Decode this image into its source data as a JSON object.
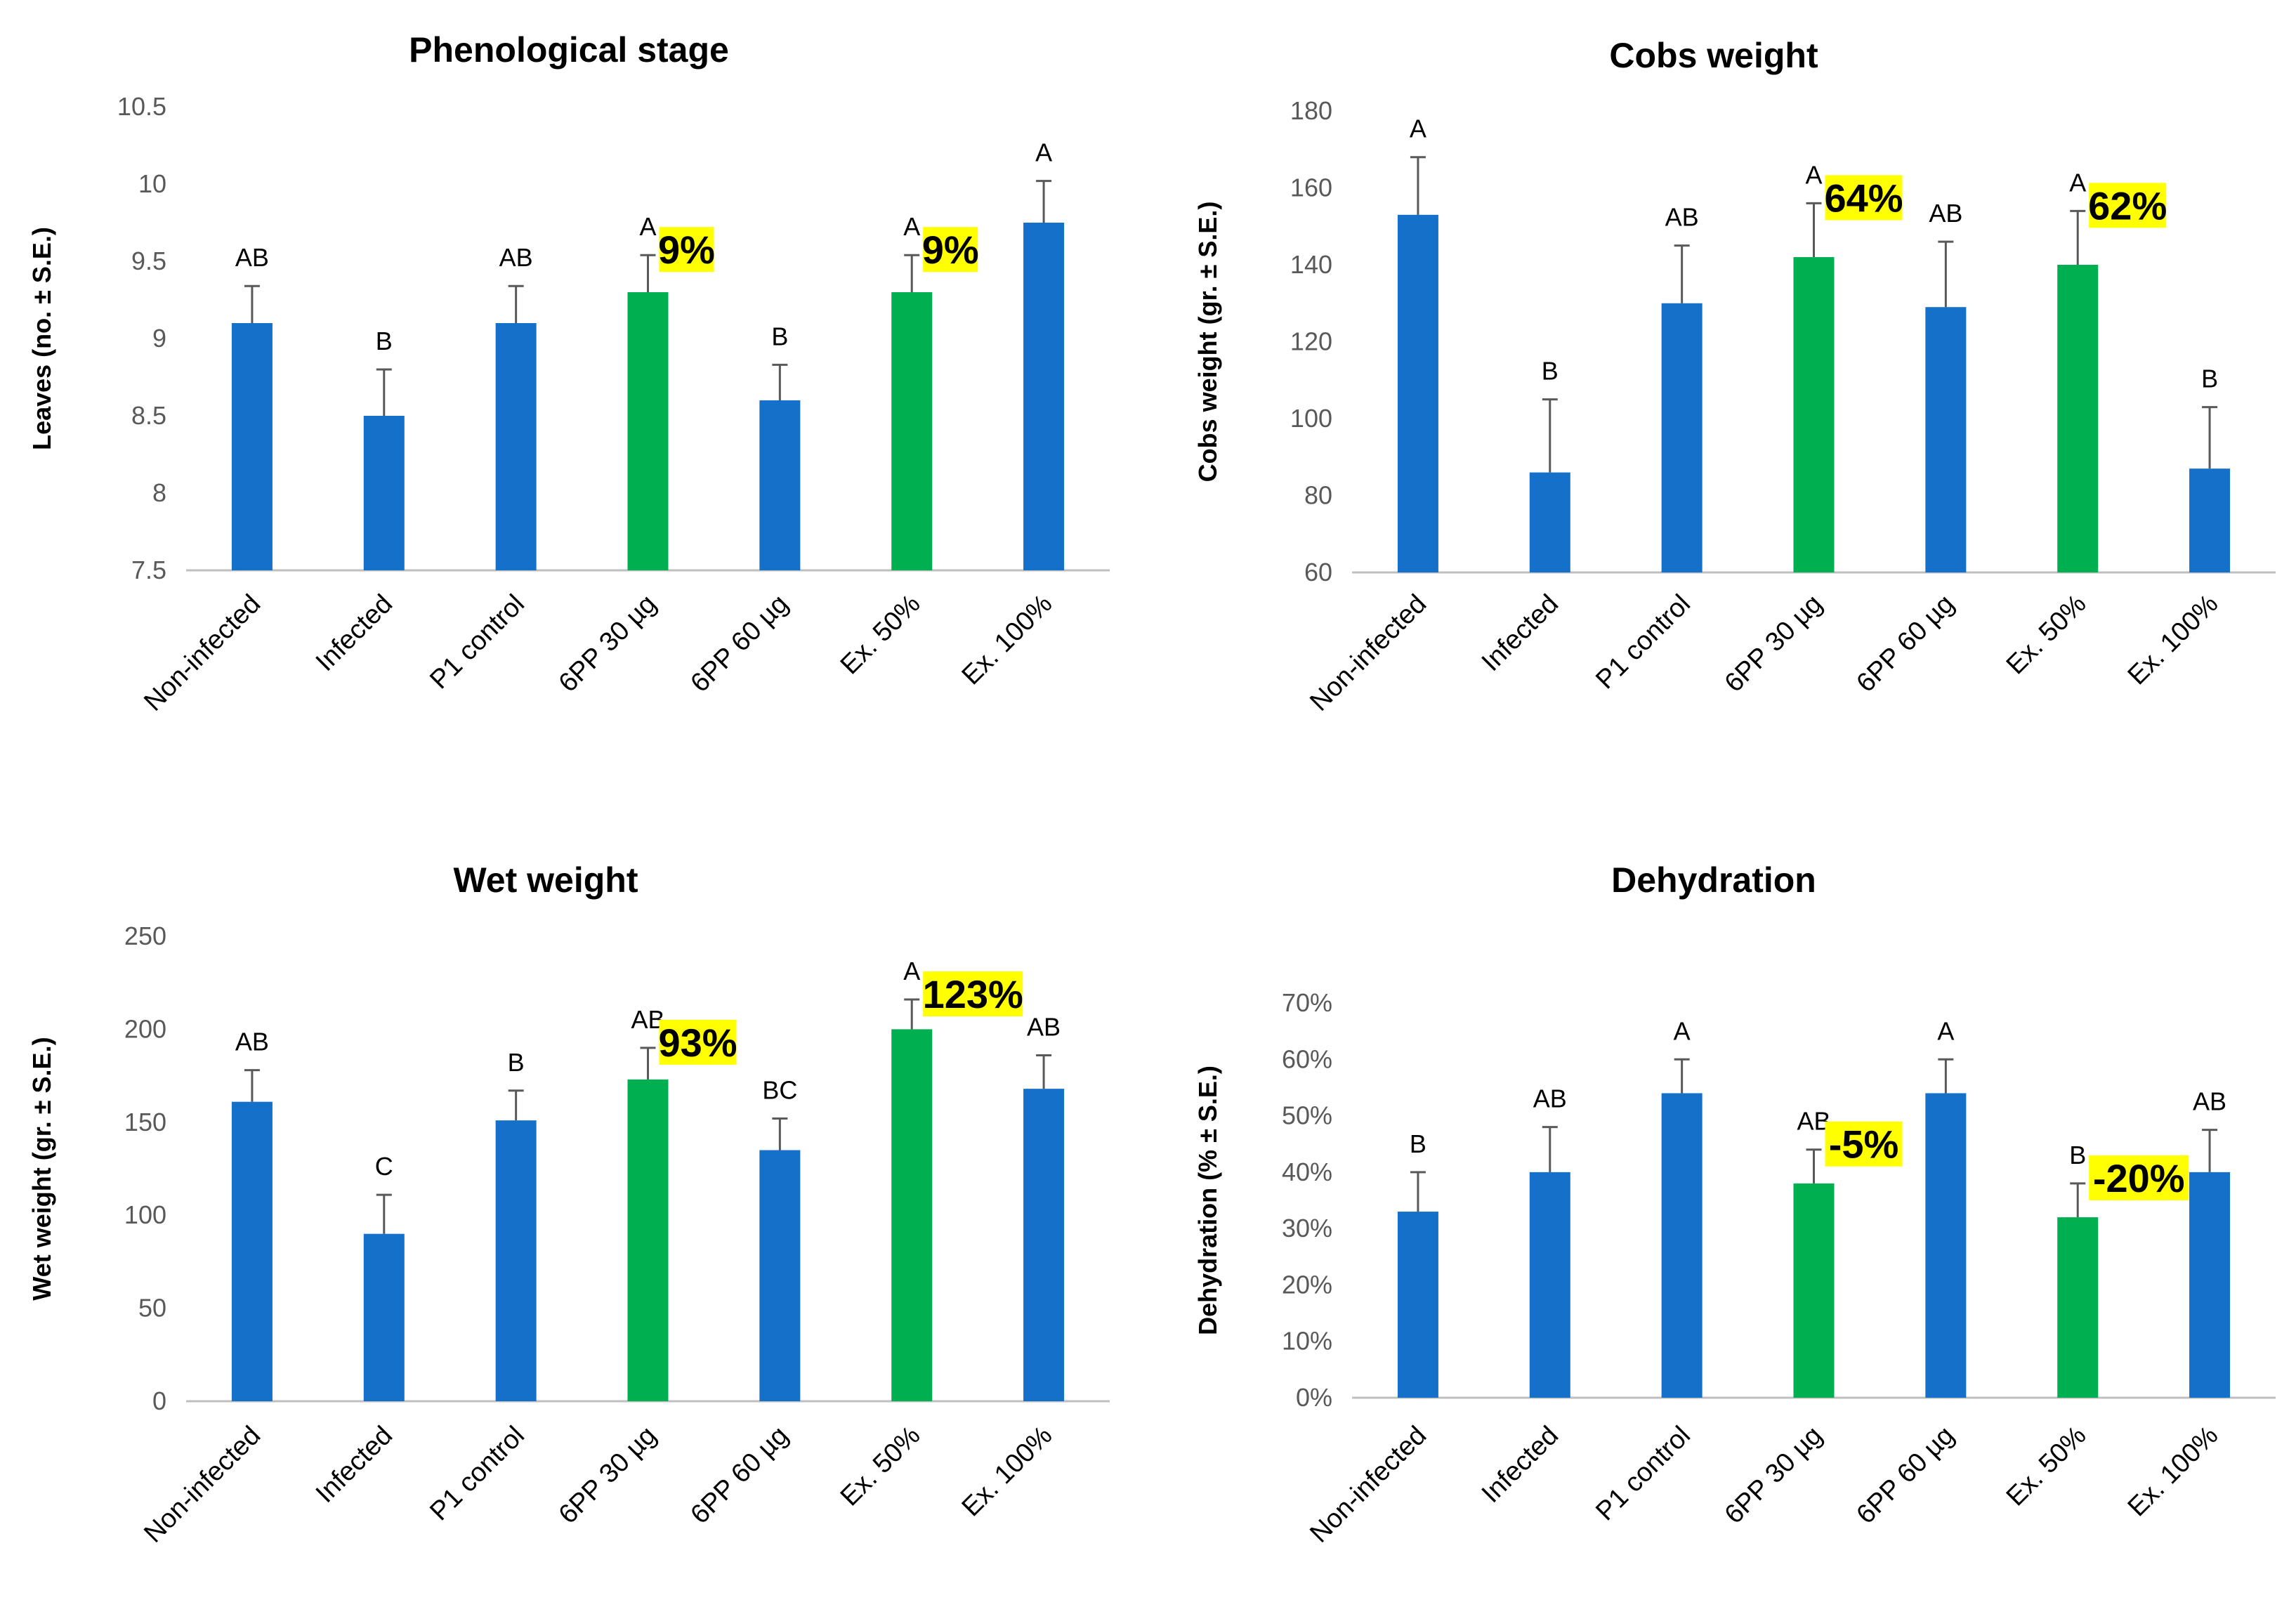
{
  "colors": {
    "base": "#1570c9",
    "highlight": "#00b050",
    "badge": "#ffff00",
    "axis": "#bfbfbf",
    "error": "#595959"
  },
  "chart_data": [
    {
      "type": "bar",
      "title": "Phenological stage",
      "xlabel": "",
      "ylabel": "Leaves (no. ± S.E.)",
      "categories": [
        "Non-infected",
        "Infected",
        "P1 control",
        "6PP 30 µg",
        "6PP 60 µg",
        "Ex. 50%",
        "Ex. 100%"
      ],
      "values": [
        9.1,
        8.5,
        9.1,
        9.3,
        8.6,
        9.3,
        9.75
      ],
      "errors": [
        0.24,
        0.3,
        0.24,
        0.24,
        0.23,
        0.24,
        0.27
      ],
      "significance": [
        "AB",
        "B",
        "AB",
        "A",
        "B",
        "A",
        "A"
      ],
      "highlighted": [
        false,
        false,
        false,
        true,
        false,
        true,
        false
      ],
      "badges": [
        "",
        "",
        "",
        "9%",
        "",
        "9%",
        ""
      ],
      "ylim": [
        7.5,
        10.5
      ],
      "yticks": [
        7.5,
        8,
        8.5,
        9,
        9.5,
        10,
        10.5
      ],
      "ytick_labels": [
        "7.5",
        "8",
        "8.5",
        "9",
        "9.5",
        "10",
        "10.5"
      ],
      "grid": false
    },
    {
      "type": "bar",
      "title": "Cobs weight",
      "xlabel": "",
      "ylabel": "Cobs weight (gr. ± S.E.)",
      "categories": [
        "Non-infected",
        "Infected",
        "P1 control",
        "6PP 30 µg",
        "6PP 60 µg",
        "Ex. 50%",
        "Ex. 100%"
      ],
      "values": [
        153,
        86,
        130,
        142,
        129,
        140,
        87
      ],
      "errors": [
        15,
        19,
        15,
        14,
        17,
        14,
        16
      ],
      "significance": [
        "A",
        "B",
        "AB",
        "A",
        "AB",
        "A",
        "B"
      ],
      "highlighted": [
        false,
        false,
        false,
        true,
        false,
        true,
        false
      ],
      "badges": [
        "",
        "",
        "",
        "64%",
        "",
        "62%",
        ""
      ],
      "ylim": [
        60,
        180
      ],
      "yticks": [
        60,
        80,
        100,
        120,
        140,
        160,
        180
      ],
      "ytick_labels": [
        "60",
        "80",
        "100",
        "120",
        "140",
        "160",
        "180"
      ],
      "grid": false
    },
    {
      "type": "bar",
      "title": "Wet weight",
      "xlabel": "",
      "ylabel": "Wet weight (gr. ± S.E.)",
      "categories": [
        "Non-infected",
        "Infected",
        "P1 control",
        "6PP 30 µg",
        "6PP 60 µg",
        "Ex. 50%",
        "Ex. 100%"
      ],
      "values": [
        161,
        90,
        151,
        173,
        135,
        200,
        168
      ],
      "errors": [
        17,
        21,
        16,
        17,
        17,
        16,
        18
      ],
      "significance": [
        "AB",
        "C",
        "B",
        "AB",
        "BC",
        "A",
        "AB"
      ],
      "highlighted": [
        false,
        false,
        false,
        true,
        false,
        true,
        false
      ],
      "badges": [
        "",
        "",
        "",
        "93%",
        "",
        "123%",
        ""
      ],
      "ylim": [
        0,
        250
      ],
      "yticks": [
        0,
        50,
        100,
        150,
        200,
        250
      ],
      "ytick_labels": [
        "0",
        "50",
        "100",
        "150",
        "200",
        "250"
      ],
      "grid": false
    },
    {
      "type": "bar",
      "title": "Dehydration",
      "xlabel": "",
      "ylabel": "Dehydration (% ± S.E.)",
      "categories": [
        "Non-infected",
        "Infected",
        "P1 control",
        "6PP 30 µg",
        "6PP 60 µg",
        "Ex. 50%",
        "Ex. 100%"
      ],
      "values": [
        0.33,
        0.4,
        0.54,
        0.38,
        0.54,
        0.32,
        0.4
      ],
      "errors": [
        0.07,
        0.08,
        0.06,
        0.06,
        0.06,
        0.06,
        0.075
      ],
      "significance": [
        "B",
        "AB",
        "A",
        "AB",
        "A",
        "B",
        "AB"
      ],
      "highlighted": [
        false,
        false,
        false,
        true,
        false,
        true,
        false
      ],
      "badges": [
        "",
        "",
        "",
        "-5%",
        "",
        "-20%",
        ""
      ],
      "ylim": [
        0,
        0.7
      ],
      "yticks": [
        0,
        0.1,
        0.2,
        0.3,
        0.4,
        0.5,
        0.6,
        0.7
      ],
      "ytick_labels": [
        "0%",
        "10%",
        "20%",
        "30%",
        "40%",
        "50%",
        "60%",
        "70%"
      ],
      "grid": false
    }
  ]
}
